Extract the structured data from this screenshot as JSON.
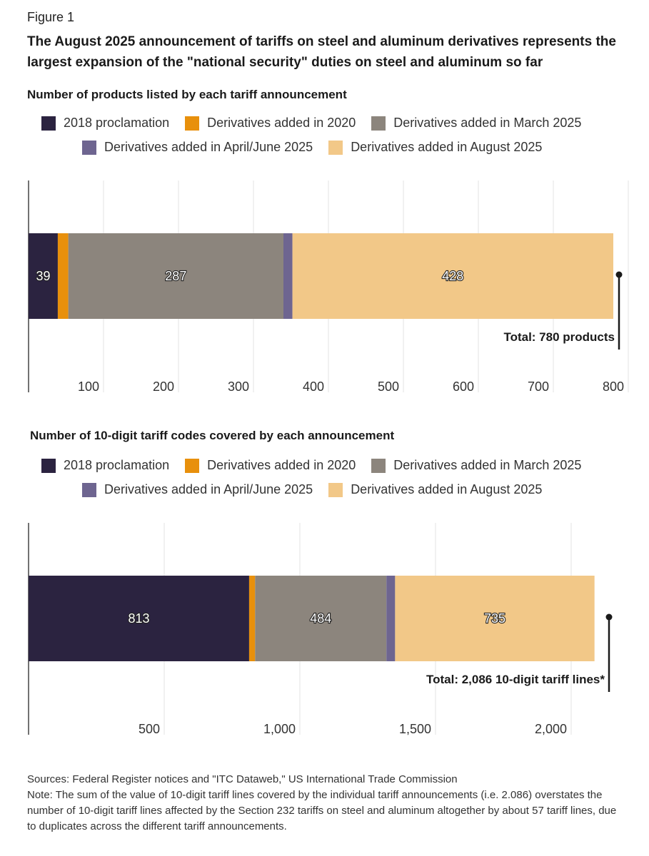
{
  "figure_label": "Figure 1",
  "title": "The August 2025 announcement of tariffs on steel and aluminum derivatives represents the largest expansion of the \"national security\" duties on steel and aluminum so far",
  "colors": {
    "proclamation_2018": "#2b2340",
    "derivatives_2020": "#e8900c",
    "derivatives_march_2025": "#8c857d",
    "derivatives_april_june_2025": "#6e6590",
    "derivatives_august_2025": "#f2c888"
  },
  "chart_data": [
    {
      "type": "bar",
      "orientation": "horizontal-stacked",
      "title": "Number of products listed by each tariff announcement",
      "legend": [
        "2018 proclamation",
        "Derivatives added in 2020",
        "Derivatives added in March 2025",
        "Derivatives added in April/June 2025",
        "Derivatives added in August 2025"
      ],
      "series": [
        {
          "name": "2018 proclamation",
          "value": 39,
          "label": "39"
        },
        {
          "name": "Derivatives added in 2020",
          "value": 14,
          "label": ""
        },
        {
          "name": "Derivatives added in March 2025",
          "value": 287,
          "label": "287"
        },
        {
          "name": "Derivatives added in April/June 2025",
          "value": 12,
          "label": ""
        },
        {
          "name": "Derivatives added in August 2025",
          "value": 428,
          "label": "428"
        }
      ],
      "ticks": [
        "100",
        "200",
        "300",
        "400",
        "500",
        "600",
        "700",
        "800"
      ],
      "tick_values": [
        100,
        200,
        300,
        400,
        500,
        600,
        700,
        800
      ],
      "xlim": [
        0,
        800
      ],
      "total_value": 780,
      "total_label": "Total: 780 products"
    },
    {
      "type": "bar",
      "orientation": "horizontal-stacked",
      "title": "Number of 10-digit tariff codes covered by each announcement",
      "legend": [
        "2018 proclamation",
        "Derivatives added in 2020",
        "Derivatives added in March 2025",
        "Derivatives added in April/June 2025",
        "Derivatives added in August 2025"
      ],
      "series": [
        {
          "name": "2018 proclamation",
          "value": 813,
          "label": "813"
        },
        {
          "name": "Derivatives added in 2020",
          "value": 22,
          "label": ""
        },
        {
          "name": "Derivatives added in March 2025",
          "value": 484,
          "label": "484"
        },
        {
          "name": "Derivatives added in April/June 2025",
          "value": 32,
          "label": ""
        },
        {
          "name": "Derivatives added in August 2025",
          "value": 735,
          "label": "735"
        }
      ],
      "ticks": [
        "500",
        "1,000",
        "1,500",
        "2,000"
      ],
      "tick_values": [
        500,
        1000,
        1500,
        2000
      ],
      "xlim": [
        0,
        2000
      ],
      "total_value": 2086,
      "total_label": "Total: 2,086 10-digit tariff lines*"
    }
  ],
  "sources": "Sources: Federal Register notices and \"ITC Dataweb,\" US International Trade Commission",
  "note": "Note: The sum of the value of 10-digit tariff lines covered by the individual tariff announcements (i.e. 2.086) overstates the number of 10-digit tariff lines affected by the Section 232 tariffs on steel and aluminum altogether by about 57 tariff lines, due to duplicates across the different tariff announcements."
}
